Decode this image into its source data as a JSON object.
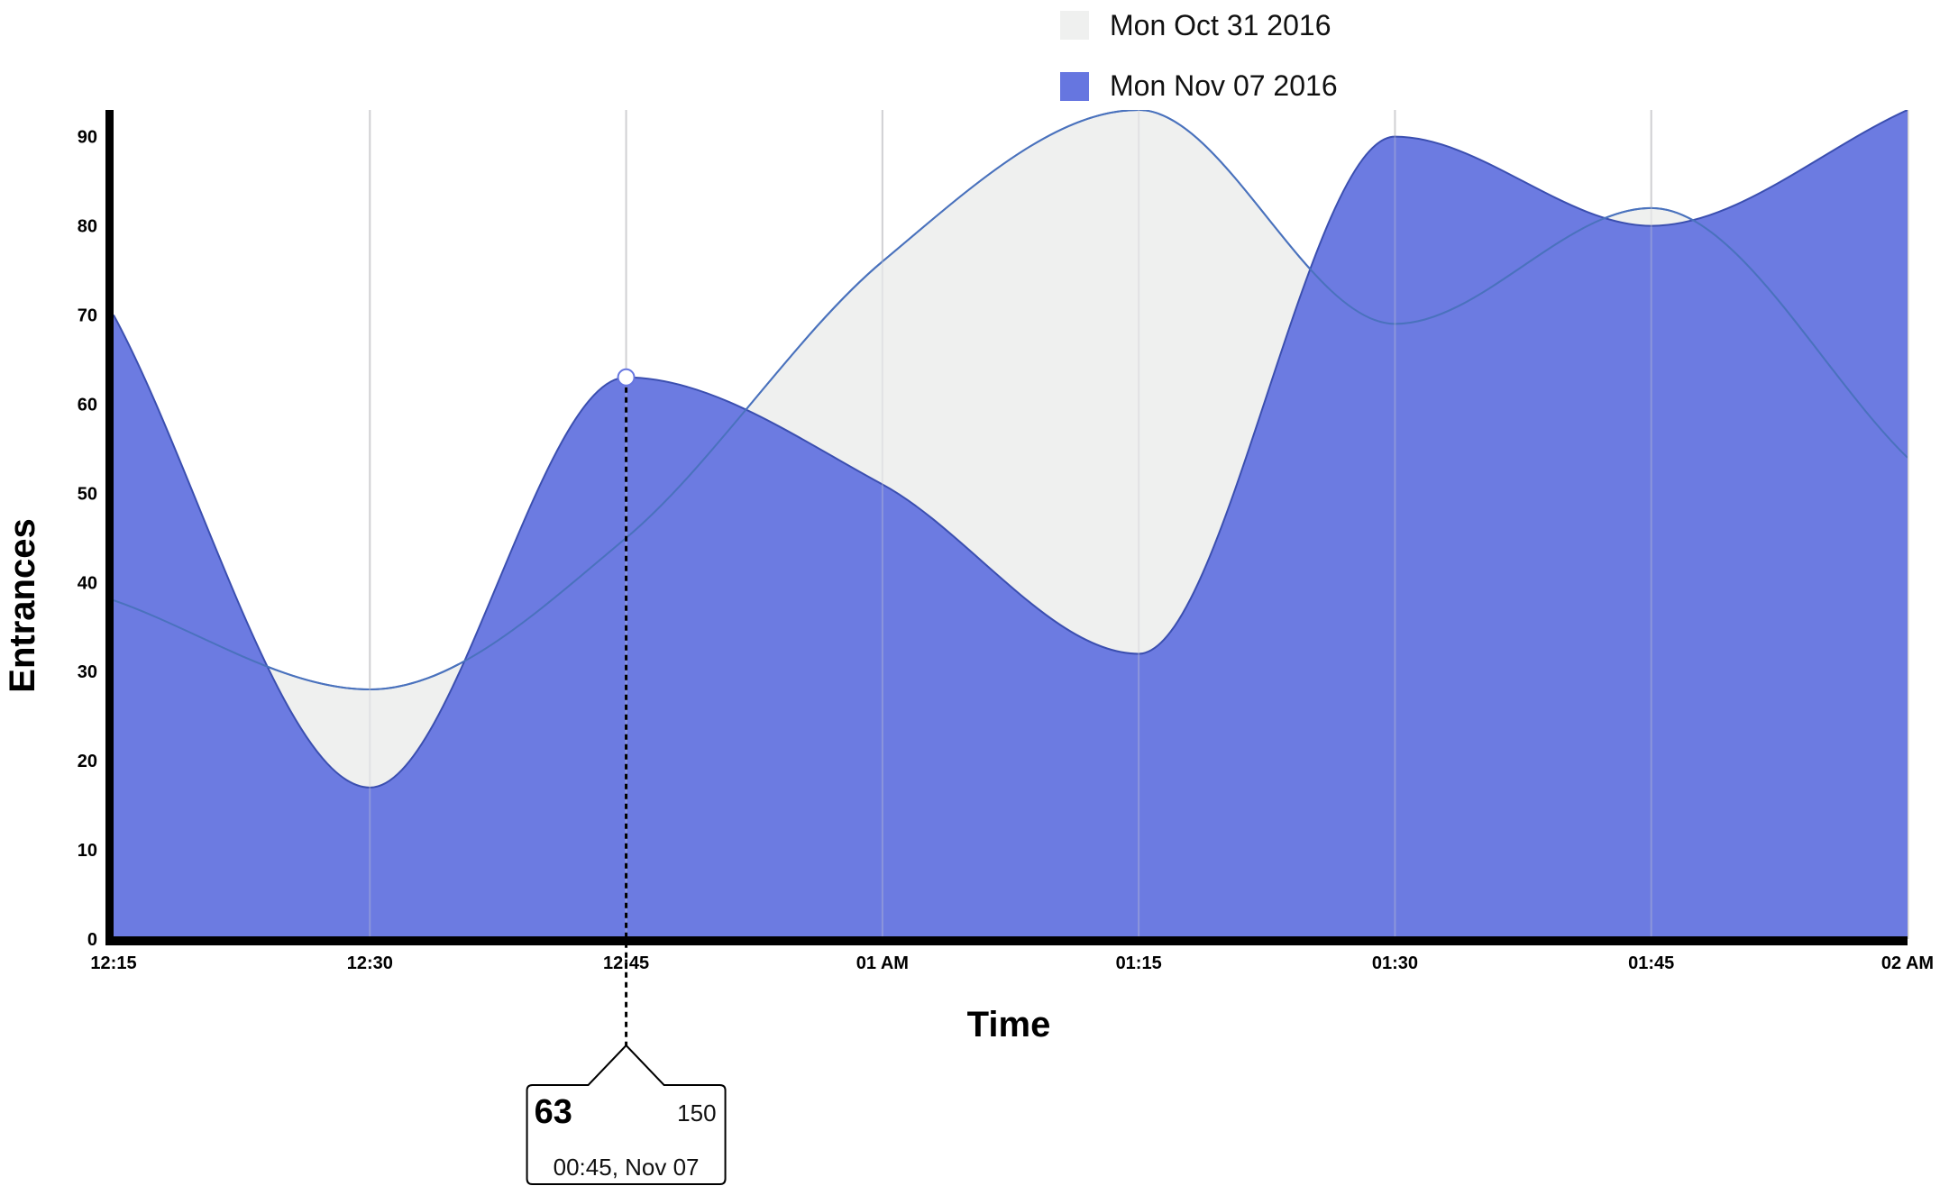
{
  "chart_data": {
    "type": "area",
    "xlabel": "Time",
    "ylabel": "Entrances",
    "x_ticks": [
      "12:15",
      "12:30",
      "12:45",
      "01 AM",
      "01:15",
      "01:30",
      "01:45",
      "02 AM"
    ],
    "y_ticks": [
      0,
      10,
      20,
      30,
      40,
      50,
      60,
      70,
      80,
      90
    ],
    "ylim": [
      0,
      93
    ],
    "grid": "vertical",
    "legend_position": "top-center",
    "series": [
      {
        "name": "Mon Oct 31 2016",
        "color": "#eff0ef",
        "stroke": "#4a72bd",
        "x": [
          "12:15",
          "12:30",
          "12:45",
          "01 AM",
          "01:15",
          "01:30",
          "01:45",
          "02 AM"
        ],
        "values": [
          38,
          28,
          45,
          76,
          93,
          69,
          82,
          54
        ]
      },
      {
        "name": "Mon Nov 07 2016",
        "color": "#6676e0",
        "stroke": "#3b4fb0",
        "x": [
          "12:15",
          "12:30",
          "12:45",
          "01 AM",
          "01:15",
          "01:30",
          "01:45",
          "02 AM"
        ],
        "values": [
          70,
          17,
          63,
          51,
          32,
          90,
          80,
          93
        ]
      }
    ],
    "tooltip": {
      "value": "63",
      "total": "150",
      "time": "00:45, Nov 07",
      "x": "12:45",
      "y": 63
    }
  }
}
